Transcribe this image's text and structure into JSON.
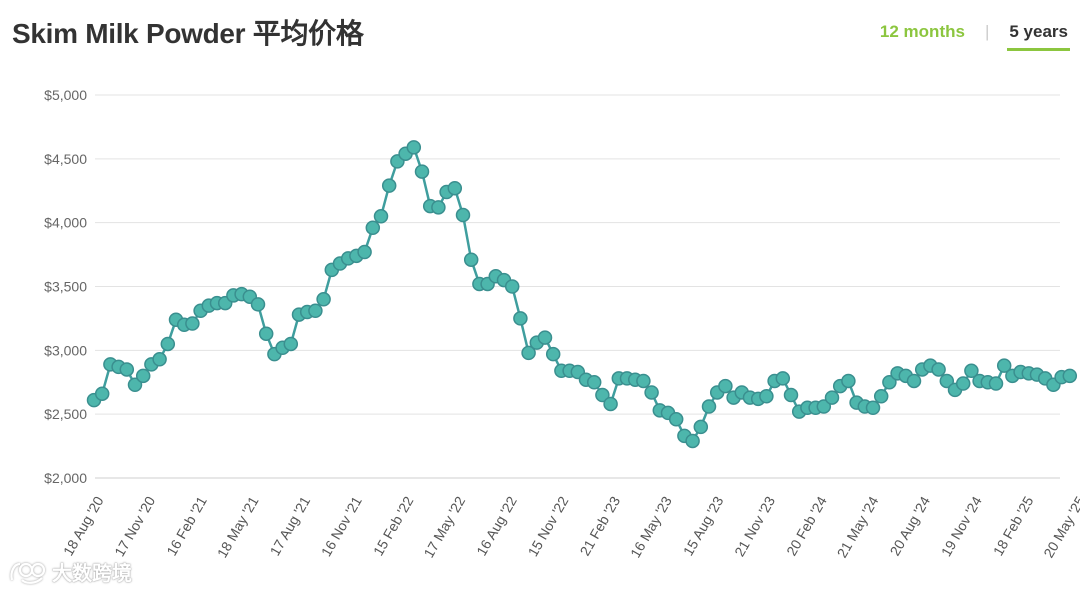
{
  "header": {
    "title": "Skim Milk Powder 平均价格"
  },
  "range_toggle": {
    "option_12m": "12 months",
    "option_5y": "5 years",
    "selected": "5 years"
  },
  "colors": {
    "line": "#3f9e9e",
    "marker_fill": "#4db6ac",
    "marker_stroke": "#3a8f8f",
    "accent": "#8cc63f",
    "grid": "#e3e3e3"
  },
  "watermark": {
    "text": "大数跨境"
  },
  "chart_data": {
    "type": "line",
    "title": "Skim Milk Powder 平均价格",
    "xlabel": "",
    "ylabel": "",
    "ylim": [
      2000,
      5000
    ],
    "y_ticks": [
      2000,
      2500,
      3000,
      3500,
      4000,
      4500,
      5000
    ],
    "y_tick_labels": [
      "$2,000",
      "$2,500",
      "$3,000",
      "$3,500",
      "$4,000",
      "$4,500",
      "$5,000"
    ],
    "x_tick_labels": [
      "18 Aug '20",
      "17 Nov '20",
      "16 Feb '21",
      "18 May '21",
      "17 Aug '21",
      "16 Nov '21",
      "15 Feb '22",
      "17 May '22",
      "16 Aug '22",
      "15 Nov '22",
      "21 Feb '23",
      "16 May '23",
      "15 Aug '23",
      "21 Nov '23",
      "20 Feb '24",
      "21 May '24",
      "20 Aug '24",
      "19 Nov '24",
      "18 Feb '25",
      "20 May '25"
    ],
    "grid": true,
    "legend": "none",
    "series": [
      {
        "values": [
          2610,
          2660,
          2890,
          2870,
          2850,
          2730,
          2800,
          2890,
          2930,
          3050,
          3240,
          3200,
          3210,
          3310,
          3350,
          3370,
          3370,
          3430,
          3440,
          3420,
          3360,
          3130,
          2970,
          3020,
          3050,
          3280,
          3300,
          3310,
          3400,
          3630,
          3680,
          3720,
          3740,
          3770,
          3960,
          4050,
          4290,
          4480,
          4540,
          4590,
          4400,
          4130,
          4120,
          4240,
          4270,
          4060,
          3710,
          3520,
          3520,
          3580,
          3550,
          3500,
          3250,
          2980,
          3060,
          3100,
          2970,
          2840,
          2840,
          2830,
          2770,
          2750,
          2650,
          2580,
          2780,
          2780,
          2770,
          2760,
          2670,
          2530,
          2510,
          2460,
          2330,
          2290,
          2400,
          2560,
          2670,
          2720,
          2630,
          2670,
          2630,
          2620,
          2640,
          2760,
          2780,
          2650,
          2520,
          2550,
          2550,
          2560,
          2630,
          2720,
          2760,
          2590,
          2560,
          2550,
          2640,
          2750,
          2820,
          2800,
          2760,
          2850,
          2880,
          2850,
          2760,
          2690,
          2740,
          2840,
          2760,
          2750,
          2740,
          2880,
          2800,
          2830,
          2820,
          2810,
          2780,
          2730,
          2790,
          2800
        ]
      }
    ]
  }
}
